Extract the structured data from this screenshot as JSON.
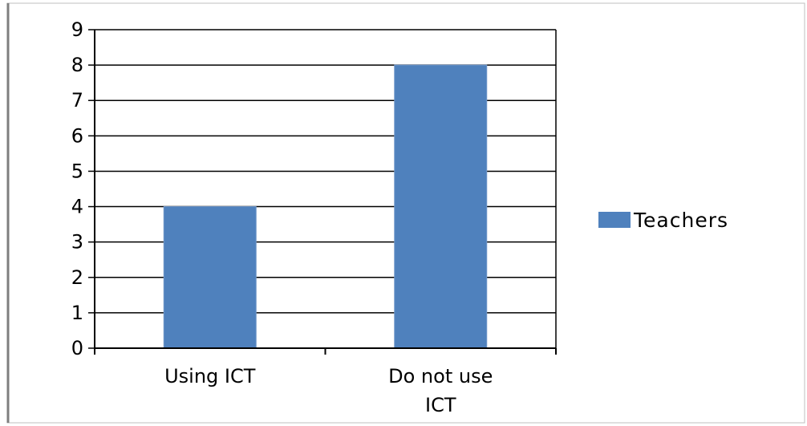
{
  "chart_data": {
    "type": "bar",
    "categories": [
      "Using ICT",
      "Do not use ICT"
    ],
    "category_label_lines": [
      [
        "Using ICT"
      ],
      [
        "Do not use",
        "ICT"
      ]
    ],
    "series": [
      {
        "name": "Teachers",
        "values": [
          4,
          8
        ],
        "color": "#4F81BD"
      }
    ],
    "ylim": [
      0,
      9
    ],
    "yticks": [
      0,
      1,
      2,
      3,
      4,
      5,
      6,
      7,
      8,
      9
    ],
    "grid": true,
    "legend_position": "right",
    "title": "",
    "xlabel": "",
    "ylabel": ""
  }
}
